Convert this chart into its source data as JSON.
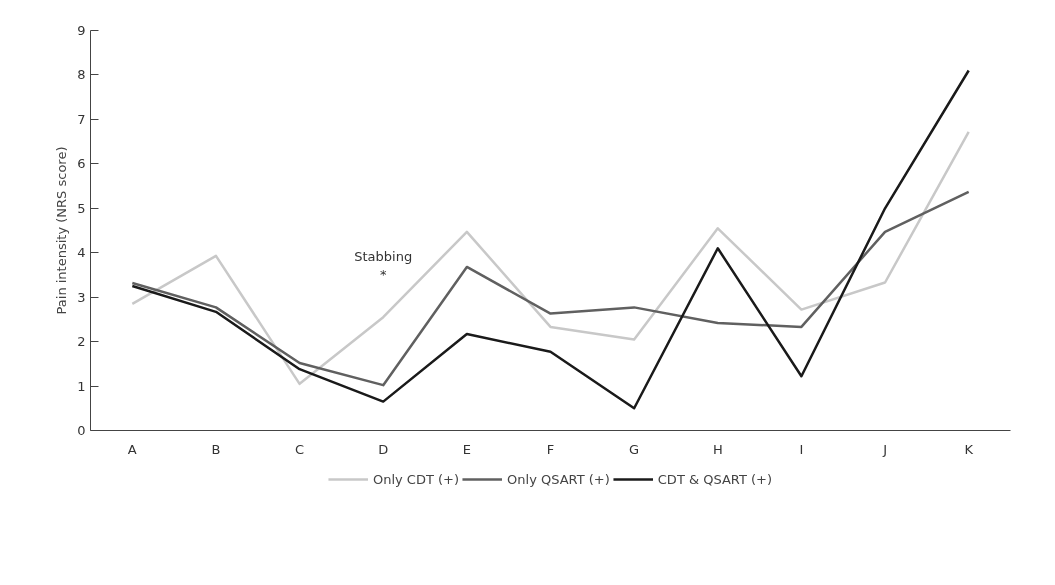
{
  "chart_data": {
    "type": "line",
    "ylabel": "Pain intensity (NRS score)",
    "categories": [
      "A",
      "B",
      "C",
      "D",
      "E",
      "F",
      "G",
      "H",
      "I",
      "J",
      "K"
    ],
    "series": [
      {
        "name": "Only CDT (+)",
        "color": "#c8c8c8",
        "values": [
          2.85,
          3.93,
          1.05,
          2.55,
          4.47,
          2.33,
          2.05,
          4.55,
          2.72,
          3.33,
          6.72
        ]
      },
      {
        "name": "Only QSART (+)",
        "color": "#606060",
        "values": [
          3.32,
          2.77,
          1.52,
          1.02,
          3.68,
          2.63,
          2.77,
          2.42,
          2.33,
          4.47,
          5.37
        ]
      },
      {
        "name": "CDT & QSART (+)",
        "color": "#1a1a1a",
        "values": [
          3.25,
          2.67,
          1.38,
          0.65,
          2.17,
          1.77,
          0.5,
          4.1,
          1.22,
          5.0,
          8.1
        ]
      }
    ],
    "annotations": [
      "Stabbing\n*"
    ],
    "ylim": [
      0,
      9
    ],
    "yticks": [
      0,
      1,
      2,
      3,
      4,
      5,
      6,
      7,
      8,
      9
    ],
    "grid": false,
    "legend": "bottom",
    "line_style": "solid",
    "marker": "none"
  }
}
